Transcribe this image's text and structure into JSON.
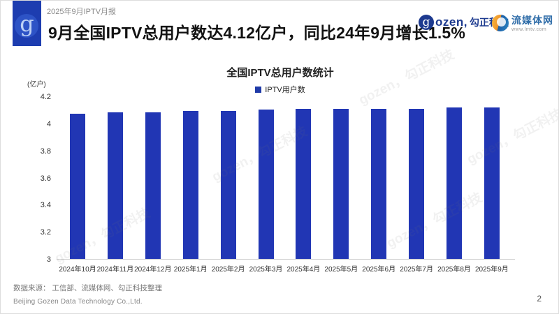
{
  "header": {
    "report_label": "2025年9月IPTV月报",
    "headline": "9月全国IPTV总用户数达4.12亿户，同比24年9月增长1.5%",
    "logo_letter": "g",
    "gozen_brand": {
      "icon_letter": "g",
      "word": "ozen,",
      "name_cn": "勾正科技"
    },
    "lmtv_brand": {
      "name": "流媒体网",
      "url_text": "www.lmtv.com"
    }
  },
  "chart": {
    "title": "全国IPTV总用户数统计",
    "legend_label": "IPTV用户数",
    "y_unit": "(亿户)"
  },
  "chart_data": {
    "type": "bar",
    "title": "全国IPTV总用户数统计",
    "ylabel": "(亿户)",
    "legend": [
      "IPTV用户数"
    ],
    "legend_position": "top",
    "grid": false,
    "bar_color": "#2136b4",
    "ylim": [
      3,
      4.2
    ],
    "yticks": [
      3,
      3.2,
      3.4,
      3.6,
      3.8,
      4,
      4.2
    ],
    "ytick_labels": [
      "3",
      "3.2",
      "3.4",
      "3.6",
      "3.8",
      "4",
      "4.2"
    ],
    "categories": [
      "2024年10月",
      "2024年11月",
      "2024年12月",
      "2025年1月",
      "2025年2月",
      "2025年3月",
      "2025年4月",
      "2025年5月",
      "2025年6月",
      "2025年7月",
      "2025年8月",
      "2025年9月"
    ],
    "values": [
      4.07,
      4.08,
      4.08,
      4.09,
      4.09,
      4.1,
      4.11,
      4.11,
      4.11,
      4.11,
      4.12,
      4.12
    ]
  },
  "footer": {
    "source": "数据来源： 工信部、流媒体网、勾正科技整理",
    "company": "Beijing Gozen Data Technology Co.,Ltd.",
    "page_number": "2"
  },
  "watermark_text": "gozen，勾正科技",
  "colors": {
    "bar": "#2136b4",
    "logo_block": "#1d3db0",
    "brand_navy": "#1d3a8f",
    "lmtv_blue": "#2e6ca8",
    "headline_text": "#121212"
  }
}
